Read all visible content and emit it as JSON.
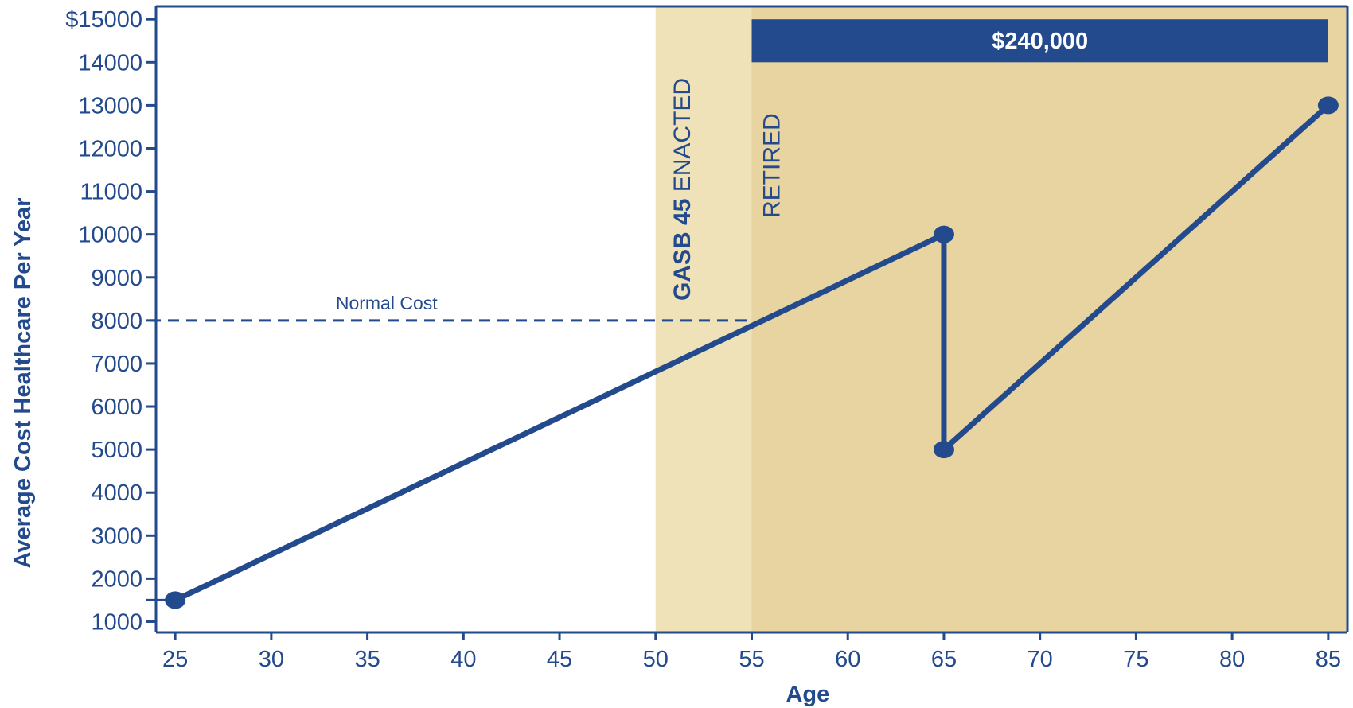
{
  "chart_data": {
    "type": "line",
    "xlabel": "Age",
    "ylabel": "Average Cost Healthcare Per Year",
    "xlim": [
      24,
      86
    ],
    "ylim": [
      750,
      15300
    ],
    "x_ticks": [
      25,
      30,
      35,
      40,
      45,
      50,
      55,
      60,
      65,
      70,
      75,
      80,
      85
    ],
    "y_ticks": [
      1000,
      2000,
      3000,
      4000,
      5000,
      6000,
      7000,
      8000,
      9000,
      10000,
      11000,
      12000,
      13000,
      14000,
      15000
    ],
    "y_tick_labels": [
      "1000",
      "2000",
      "3000",
      "4000",
      "5000",
      "6000",
      "7000",
      "8000",
      "9000",
      "10000",
      "11000",
      "12000",
      "13000",
      "14000",
      "$15000"
    ],
    "series": [
      {
        "x": [
          25,
          65,
          65,
          85
        ],
        "y": [
          1500,
          10000,
          5000,
          13000
        ],
        "markers": [
          [
            25,
            1500
          ],
          [
            65,
            10000
          ],
          [
            65,
            5000
          ],
          [
            85,
            13000
          ]
        ]
      }
    ],
    "normal_cost": {
      "label": "Normal Cost",
      "y": 8000,
      "x_range": [
        24,
        55
      ],
      "style": "dashed"
    },
    "regions": [
      {
        "x_range": [
          50,
          86
        ],
        "color": "#efe2b8",
        "label_bold": "GASB 45",
        "label_rest": " ENACTED"
      },
      {
        "x_range": [
          55,
          86
        ],
        "color": "#e7d4a0",
        "label": "RETIRED"
      }
    ],
    "total_bar": {
      "label": "$240,000",
      "x_range": [
        55,
        85
      ],
      "y_range": [
        14000,
        15000
      ],
      "color": "#234a8c"
    },
    "colors": {
      "line": "#234a8c",
      "axis": "#234a8c",
      "text": "#234a8c"
    },
    "grid": false
  }
}
